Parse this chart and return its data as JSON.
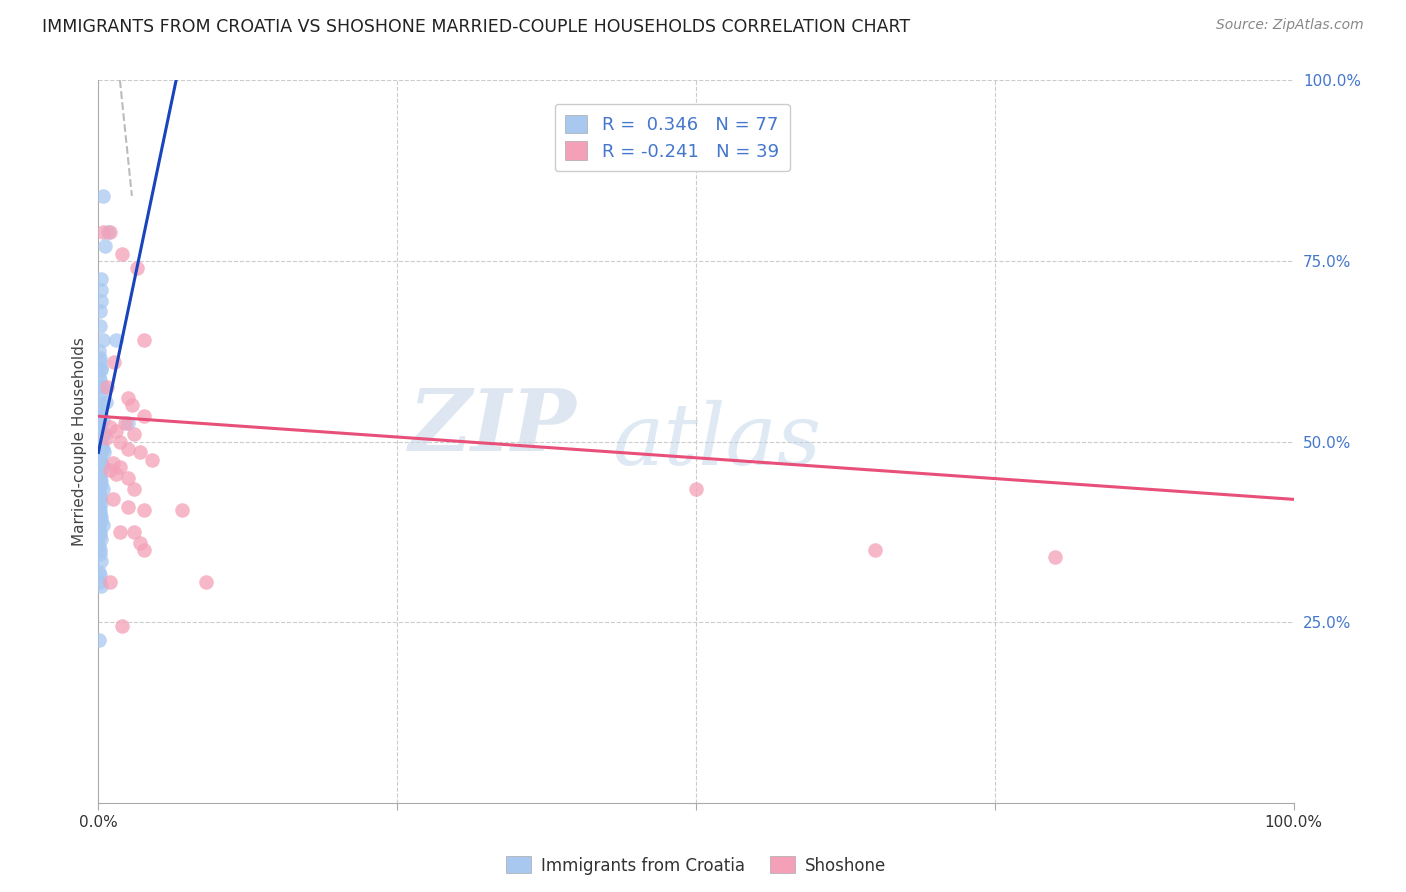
{
  "title": "IMMIGRANTS FROM CROATIA VS SHOSHONE MARRIED-COUPLE HOUSEHOLDS CORRELATION CHART",
  "source": "Source: ZipAtlas.com",
  "ylabel": "Married-couple Households",
  "xlim": [
    0,
    100
  ],
  "ylim": [
    0,
    100
  ],
  "grid_color": "#cccccc",
  "background_color": "#ffffff",
  "blue_color": "#a8c8f0",
  "pink_color": "#f4a0b8",
  "blue_line_color": "#1a44bb",
  "pink_line_color": "#e8507a",
  "dashed_line_color": "#aaaaaa",
  "legend_R_blue": "0.346",
  "legend_N_blue": "77",
  "legend_R_pink": "-0.241",
  "legend_N_pink": "39",
  "legend_label_blue": "Immigrants from Croatia",
  "legend_label_pink": "Shoshone",
  "watermark_zip": "ZIP",
  "watermark_atlas": "atlas",
  "blue_dots": [
    [
      0.35,
      84.0
    ],
    [
      0.8,
      79.0
    ],
    [
      0.55,
      77.0
    ],
    [
      0.25,
      72.5
    ],
    [
      0.18,
      71.0
    ],
    [
      0.22,
      69.5
    ],
    [
      0.12,
      68.0
    ],
    [
      0.15,
      66.0
    ],
    [
      0.35,
      64.0
    ],
    [
      1.5,
      64.0
    ],
    [
      0.08,
      62.5
    ],
    [
      0.15,
      61.5
    ],
    [
      0.1,
      61.0
    ],
    [
      0.18,
      60.0
    ],
    [
      0.25,
      60.0
    ],
    [
      0.07,
      59.0
    ],
    [
      0.12,
      58.5
    ],
    [
      0.18,
      57.5
    ],
    [
      0.35,
      57.5
    ],
    [
      0.1,
      56.5
    ],
    [
      0.15,
      55.5
    ],
    [
      0.65,
      55.5
    ],
    [
      0.1,
      54.5
    ],
    [
      0.13,
      54.0
    ],
    [
      0.25,
      53.5
    ],
    [
      0.38,
      53.0
    ],
    [
      0.07,
      52.5
    ],
    [
      0.1,
      52.0
    ],
    [
      0.13,
      52.0
    ],
    [
      0.18,
      51.5
    ],
    [
      0.25,
      51.0
    ],
    [
      0.35,
      51.0
    ],
    [
      0.5,
      51.0
    ],
    [
      0.07,
      50.5
    ],
    [
      0.1,
      50.0
    ],
    [
      0.13,
      50.0
    ],
    [
      0.18,
      50.0
    ],
    [
      0.25,
      49.5
    ],
    [
      0.3,
      49.0
    ],
    [
      0.38,
      49.0
    ],
    [
      0.5,
      48.5
    ],
    [
      0.07,
      48.0
    ],
    [
      0.1,
      48.0
    ],
    [
      0.13,
      47.5
    ],
    [
      0.18,
      47.0
    ],
    [
      0.25,
      47.0
    ],
    [
      0.38,
      46.5
    ],
    [
      0.07,
      46.0
    ],
    [
      0.1,
      45.5
    ],
    [
      0.13,
      45.0
    ],
    [
      0.18,
      44.5
    ],
    [
      0.25,
      44.0
    ],
    [
      0.38,
      43.5
    ],
    [
      0.07,
      43.0
    ],
    [
      0.1,
      42.5
    ],
    [
      0.15,
      42.0
    ],
    [
      0.25,
      41.5
    ],
    [
      0.07,
      41.0
    ],
    [
      0.1,
      40.5
    ],
    [
      0.15,
      40.0
    ],
    [
      0.18,
      39.5
    ],
    [
      0.25,
      39.0
    ],
    [
      0.38,
      38.5
    ],
    [
      0.07,
      38.0
    ],
    [
      0.1,
      37.5
    ],
    [
      0.15,
      37.0
    ],
    [
      0.25,
      36.5
    ],
    [
      0.07,
      35.5
    ],
    [
      0.1,
      35.0
    ],
    [
      0.15,
      34.5
    ],
    [
      0.25,
      33.5
    ],
    [
      0.07,
      32.0
    ],
    [
      0.1,
      31.5
    ],
    [
      0.15,
      30.5
    ],
    [
      0.18,
      30.0
    ],
    [
      0.07,
      22.5
    ],
    [
      2.5,
      52.5
    ]
  ],
  "pink_dots": [
    [
      0.4,
      79.0
    ],
    [
      1.0,
      79.0
    ],
    [
      2.0,
      76.0
    ],
    [
      3.2,
      74.0
    ],
    [
      3.8,
      64.0
    ],
    [
      1.3,
      61.0
    ],
    [
      0.7,
      57.5
    ],
    [
      2.5,
      56.0
    ],
    [
      2.8,
      55.0
    ],
    [
      3.8,
      53.5
    ],
    [
      2.2,
      52.5
    ],
    [
      1.0,
      52.0
    ],
    [
      1.5,
      51.5
    ],
    [
      3.0,
      51.0
    ],
    [
      0.6,
      50.5
    ],
    [
      1.8,
      50.0
    ],
    [
      2.5,
      49.0
    ],
    [
      3.5,
      48.5
    ],
    [
      4.5,
      47.5
    ],
    [
      1.2,
      47.0
    ],
    [
      1.8,
      46.5
    ],
    [
      1.0,
      46.0
    ],
    [
      1.5,
      45.5
    ],
    [
      2.5,
      45.0
    ],
    [
      3.0,
      43.5
    ],
    [
      1.2,
      42.0
    ],
    [
      2.5,
      41.0
    ],
    [
      3.8,
      40.5
    ],
    [
      7.0,
      40.5
    ],
    [
      1.8,
      37.5
    ],
    [
      3.0,
      37.5
    ],
    [
      3.5,
      36.0
    ],
    [
      3.8,
      35.0
    ],
    [
      50.0,
      43.5
    ],
    [
      65.0,
      35.0
    ],
    [
      80.0,
      34.0
    ],
    [
      9.0,
      30.5
    ],
    [
      1.0,
      30.5
    ],
    [
      2.0,
      24.5
    ]
  ],
  "blue_line_x": [
    0.0,
    6.5
  ],
  "blue_line_y": [
    48.5,
    100.0
  ],
  "pink_line_x": [
    0.0,
    100.0
  ],
  "pink_line_y": [
    53.5,
    42.0
  ],
  "dashed_line_x": [
    1.8,
    2.8
  ],
  "dashed_line_y": [
    100.0,
    84.0
  ]
}
